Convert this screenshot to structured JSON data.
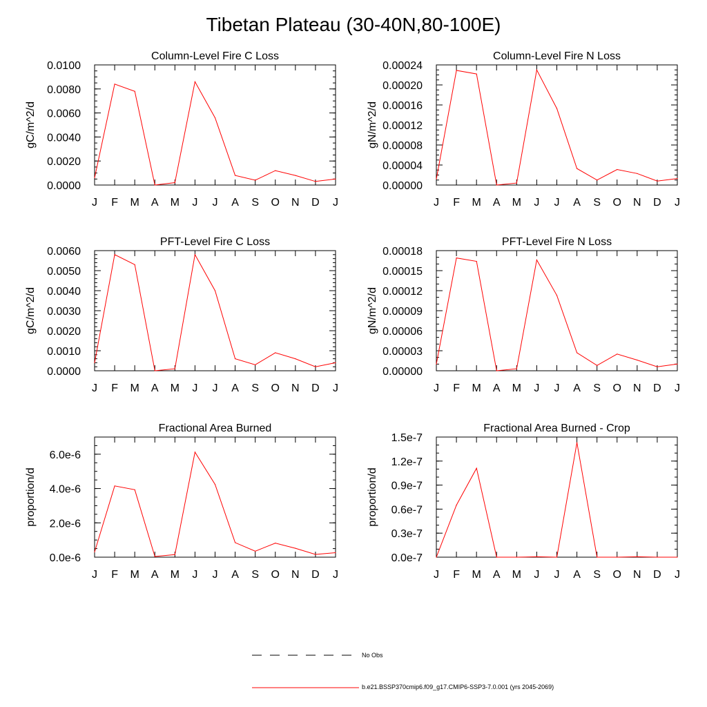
{
  "figure": {
    "title": "Tibetan Plateau (30-40N,80-100E)"
  },
  "legend": {
    "items": [
      {
        "label": "No Obs",
        "style": "dashed",
        "color": "#000000"
      },
      {
        "label": "b.e21.BSSP370cmip6.f09_g17.CMIP6-SSP3-7.0.001 (yrs 2045-2069)",
        "style": "solid",
        "color": "#ff0000"
      }
    ]
  },
  "colors": {
    "series": "#ff0000",
    "axis": "#000000"
  },
  "chart_data": [
    {
      "type": "line",
      "title": "Column-Level Fire C Loss",
      "ylabel": "gC/m^2/d",
      "categories": [
        "J",
        "F",
        "M",
        "A",
        "M",
        "J",
        "J",
        "A",
        "S",
        "O",
        "N",
        "D",
        "J"
      ],
      "ylim": [
        0,
        0.01
      ],
      "yticks": [
        0,
        0.002,
        0.004,
        0.006,
        0.008,
        0.01
      ],
      "yticklabels": [
        "0.0000",
        "0.0020",
        "0.0040",
        "0.0060",
        "0.0080",
        "0.0100"
      ],
      "minor_step": 0.0005,
      "values": [
        0.0006,
        0.0084,
        0.0078,
        0.0,
        0.0002,
        0.0086,
        0.0056,
        0.0008,
        0.0004,
        0.0012,
        0.0008,
        0.0003,
        0.0005
      ]
    },
    {
      "type": "line",
      "title": "Column-Level Fire N Loss",
      "ylabel": "gN/m^2/d",
      "categories": [
        "J",
        "F",
        "M",
        "A",
        "M",
        "J",
        "J",
        "A",
        "S",
        "O",
        "N",
        "D",
        "J"
      ],
      "ylim": [
        0,
        0.00024
      ],
      "yticks": [
        0,
        4e-05,
        8e-05,
        0.00012,
        0.00016,
        0.0002,
        0.00024
      ],
      "yticklabels": [
        "0.00000",
        "0.00004",
        "0.00008",
        "0.00012",
        "0.00016",
        "0.00020",
        "0.00024"
      ],
      "minor_step": 1e-05,
      "values": [
        1.2e-05,
        0.000229,
        0.000222,
        0.0,
        4e-06,
        0.00023,
        0.000153,
        3.3e-05,
        1e-05,
        3.1e-05,
        2.3e-05,
        8e-06,
        1.3e-05
      ]
    },
    {
      "type": "line",
      "title": "PFT-Level Fire C Loss",
      "ylabel": "gC/m^2/d",
      "categories": [
        "J",
        "F",
        "M",
        "A",
        "M",
        "J",
        "J",
        "A",
        "S",
        "O",
        "N",
        "D",
        "J"
      ],
      "ylim": [
        0,
        0.006
      ],
      "yticks": [
        0,
        0.001,
        0.002,
        0.003,
        0.004,
        0.005,
        0.006
      ],
      "yticklabels": [
        "0.0000",
        "0.0010",
        "0.0020",
        "0.0030",
        "0.0040",
        "0.0050",
        "0.0060"
      ],
      "minor_step": 0.0002,
      "values": [
        0.0004,
        0.0058,
        0.0053,
        0.0,
        0.0001,
        0.0058,
        0.004,
        0.0006,
        0.0003,
        0.0009,
        0.0006,
        0.0002,
        0.0004
      ]
    },
    {
      "type": "line",
      "title": "PFT-Level Fire N Loss",
      "ylabel": "gN/m^2/d",
      "categories": [
        "J",
        "F",
        "M",
        "A",
        "M",
        "J",
        "J",
        "A",
        "S",
        "O",
        "N",
        "D",
        "J"
      ],
      "ylim": [
        0,
        0.00018
      ],
      "yticks": [
        0,
        3e-05,
        6e-05,
        9e-05,
        0.00012,
        0.00015,
        0.00018
      ],
      "yticklabels": [
        "0.00000",
        "0.00003",
        "0.00006",
        "0.00009",
        "0.00012",
        "0.00015",
        "0.00018"
      ],
      "minor_step": 1e-05,
      "values": [
        1e-05,
        0.000169,
        0.000164,
        0.0,
        3e-06,
        0.000166,
        0.000113,
        2.7e-05,
        8e-06,
        2.5e-05,
        1.6e-05,
        6e-06,
        1e-05
      ]
    },
    {
      "type": "line",
      "title": "Fractional Area Burned",
      "ylabel": "proportion/d",
      "categories": [
        "J",
        "F",
        "M",
        "A",
        "M",
        "J",
        "J",
        "A",
        "S",
        "O",
        "N",
        "D",
        "J"
      ],
      "ylim": [
        0,
        7e-06
      ],
      "yticks": [
        0,
        2e-06,
        4e-06,
        6e-06
      ],
      "yticklabels": [
        "0.0e-6",
        "2.0e-6",
        "4.0e-6",
        "6.0e-6"
      ],
      "minor_step": 5e-07,
      "values": [
        3e-07,
        4.15e-06,
        3.93e-06,
        4e-08,
        1.5e-07,
        6.12e-06,
        4.24e-06,
        8.5e-07,
        3.5e-07,
        8.2e-07,
        5.2e-07,
        1.6e-07,
        2.6e-07
      ]
    },
    {
      "type": "line",
      "title": "Fractional Area Burned - Crop",
      "ylabel": "proportion/d",
      "categories": [
        "J",
        "F",
        "M",
        "A",
        "M",
        "J",
        "J",
        "A",
        "S",
        "O",
        "N",
        "D",
        "J"
      ],
      "ylim": [
        0,
        1.5e-07
      ],
      "yticks": [
        0,
        3e-08,
        6e-08,
        9e-08,
        1.2e-07,
        1.5e-07
      ],
      "yticklabels": [
        "0.0e-7",
        "0.3e-7",
        "0.6e-7",
        "0.9e-7",
        "1.2e-7",
        "1.5e-7"
      ],
      "minor_step": 1e-08,
      "values": [
        0.0,
        6.5e-08,
        1.11e-07,
        0.0,
        0.0,
        5e-10,
        0.0,
        1.43e-07,
        0.0,
        0.0,
        5e-10,
        0.0,
        0.0
      ]
    }
  ]
}
